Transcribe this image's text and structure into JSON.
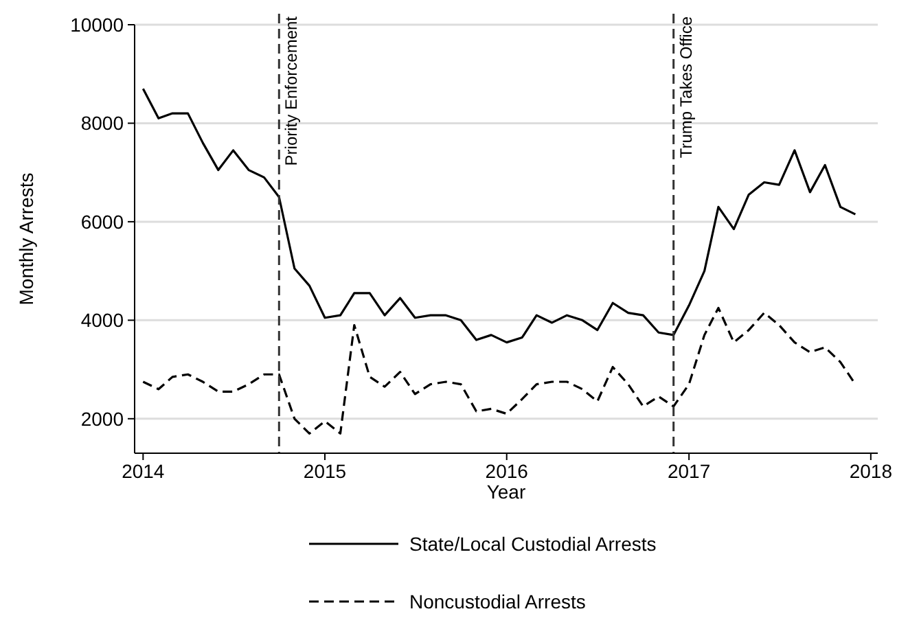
{
  "chart_data": {
    "type": "line",
    "xlabel": "Year",
    "ylabel": "Monthly Arrests",
    "x": [
      "2014-01",
      "2014-02",
      "2014-03",
      "2014-04",
      "2014-05",
      "2014-06",
      "2014-07",
      "2014-08",
      "2014-09",
      "2014-10",
      "2014-11",
      "2014-12",
      "2015-01",
      "2015-02",
      "2015-03",
      "2015-04",
      "2015-05",
      "2015-06",
      "2015-07",
      "2015-08",
      "2015-09",
      "2015-10",
      "2015-11",
      "2015-12",
      "2016-01",
      "2016-02",
      "2016-03",
      "2016-04",
      "2016-05",
      "2016-06",
      "2016-07",
      "2016-08",
      "2016-09",
      "2016-10",
      "2016-11",
      "2016-12",
      "2017-01",
      "2017-02",
      "2017-03",
      "2017-04",
      "2017-05",
      "2017-06",
      "2017-07",
      "2017-08",
      "2017-09",
      "2017-10",
      "2017-11",
      "2017-12"
    ],
    "series": [
      {
        "name": "State/Local Custodial Arrests",
        "color": "#000000",
        "line_style": "solid",
        "values": [
          8700,
          8100,
          8200,
          8200,
          7600,
          7050,
          7450,
          7050,
          6900,
          6500,
          5050,
          4700,
          4050,
          4100,
          4550,
          4550,
          4100,
          4450,
          4050,
          4100,
          4100,
          4000,
          3600,
          3700,
          3550,
          3650,
          4100,
          3950,
          4100,
          4000,
          3800,
          4350,
          4150,
          4100,
          3750,
          3700,
          4300,
          5000,
          6300,
          5850,
          6550,
          6800,
          6750,
          7450,
          6600,
          7150,
          6300,
          6150
        ]
      },
      {
        "name": "Noncustodial Arrests",
        "color": "#000000",
        "line_style": "dashed",
        "values": [
          2750,
          2600,
          2850,
          2900,
          2750,
          2550,
          2550,
          2700,
          2900,
          2900,
          2000,
          1700,
          1950,
          1700,
          3900,
          2850,
          2650,
          2950,
          2500,
          2700,
          2750,
          2700,
          2150,
          2200,
          2100,
          2400,
          2700,
          2750,
          2750,
          2600,
          2350,
          3050,
          2700,
          2250,
          2450,
          2250,
          2700,
          3700,
          4250,
          3550,
          3800,
          4150,
          3900,
          3550,
          3350,
          3450,
          3150,
          2700
        ]
      }
    ],
    "xlim": [
      "2013-12-15",
      "2018-01-15"
    ],
    "xticks": [
      {
        "value": "2014",
        "label": "2014"
      },
      {
        "value": "2015",
        "label": "2015"
      },
      {
        "value": "2016",
        "label": "2016"
      },
      {
        "value": "2017",
        "label": "2017"
      },
      {
        "value": "2018",
        "label": "2018"
      }
    ],
    "ylim": [
      1300,
      10000
    ],
    "yticks": [
      2000,
      4000,
      6000,
      8000,
      10000
    ],
    "grid": "y",
    "legend": "bottom",
    "marker": "none",
    "ref_lines": [
      {
        "axis": "x",
        "value": "2014-10",
        "label": "Priority Enforcement",
        "line_style": "dashed",
        "color": "#333333"
      },
      {
        "axis": "x",
        "value": "2016-12",
        "label": "Trump Takes Office",
        "line_style": "dashed",
        "color": "#333333"
      }
    ]
  }
}
